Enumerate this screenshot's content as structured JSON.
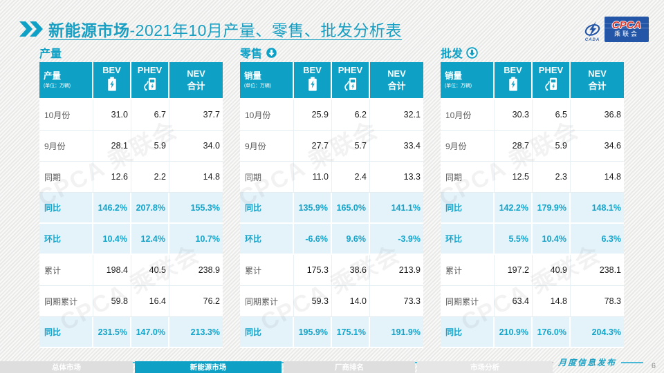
{
  "header": {
    "title_bold": "新能源市场",
    "title_rest": "-2021年10月产量、零售、批发分析表",
    "logo": {
      "swoosh_text": "CADA",
      "box_title": "CPCA",
      "box_subtitle": "乘联会"
    }
  },
  "watermark": "CPCA 乘联会",
  "tables": [
    {
      "section_title": "产量",
      "arrow_icon": "none",
      "corner_label": "产量",
      "corner_unit": "(单位：万辆)",
      "columns": [
        "BEV",
        "PHEV",
        "NEV\n合计"
      ],
      "rows": [
        {
          "label": "10月份",
          "values": [
            "31.0",
            "6.7",
            "37.7"
          ],
          "highlight": false
        },
        {
          "label": "9月份",
          "values": [
            "28.1",
            "5.9",
            "34.0"
          ],
          "highlight": false
        },
        {
          "label": "同期",
          "values": [
            "12.6",
            "2.2",
            "14.8"
          ],
          "highlight": false
        },
        {
          "label": "同比",
          "values": [
            "146.2%",
            "207.8%",
            "155.3%"
          ],
          "highlight": true
        },
        {
          "label": "环比",
          "values": [
            "10.4%",
            "12.4%",
            "10.7%"
          ],
          "highlight": true
        },
        {
          "label": "累计",
          "values": [
            "198.4",
            "40.5",
            "238.9"
          ],
          "highlight": false
        },
        {
          "label": "同期累计",
          "values": [
            "59.8",
            "16.4",
            "76.2"
          ],
          "highlight": false
        },
        {
          "label": "同比",
          "values": [
            "231.5%",
            "147.0%",
            "213.3%"
          ],
          "highlight": true
        }
      ]
    },
    {
      "section_title": "零售",
      "arrow_icon": "solid",
      "corner_label": "销量",
      "corner_unit": "(单位：万辆)",
      "columns": [
        "BEV",
        "PHEV",
        "NEV\n合计"
      ],
      "rows": [
        {
          "label": "10月份",
          "values": [
            "25.9",
            "6.2",
            "32.1"
          ],
          "highlight": false
        },
        {
          "label": "9月份",
          "values": [
            "27.7",
            "5.7",
            "33.4"
          ],
          "highlight": false
        },
        {
          "label": "同期",
          "values": [
            "11.0",
            "2.4",
            "13.3"
          ],
          "highlight": false
        },
        {
          "label": "同比",
          "values": [
            "135.9%",
            "165.0%",
            "141.1%"
          ],
          "highlight": true
        },
        {
          "label": "环比",
          "values": [
            "-6.6%",
            "9.6%",
            "-3.9%"
          ],
          "highlight": true
        },
        {
          "label": "累计",
          "values": [
            "175.3",
            "38.6",
            "213.9"
          ],
          "highlight": false
        },
        {
          "label": "同期累计",
          "values": [
            "59.3",
            "14.0",
            "73.3"
          ],
          "highlight": false
        },
        {
          "label": "同比",
          "values": [
            "195.9%",
            "175.1%",
            "191.9%"
          ],
          "highlight": true
        }
      ]
    },
    {
      "section_title": "批发",
      "arrow_icon": "outline",
      "corner_label": "销量",
      "corner_unit": "(单位：万辆)",
      "columns": [
        "BEV",
        "PHEV",
        "NEV\n合计"
      ],
      "rows": [
        {
          "label": "10月份",
          "values": [
            "30.3",
            "6.5",
            "36.8"
          ],
          "highlight": false
        },
        {
          "label": "9月份",
          "values": [
            "28.7",
            "5.9",
            "34.6"
          ],
          "highlight": false
        },
        {
          "label": "同期",
          "values": [
            "12.5",
            "2.3",
            "14.8"
          ],
          "highlight": false
        },
        {
          "label": "同比",
          "values": [
            "142.2%",
            "179.9%",
            "148.1%"
          ],
          "highlight": true
        },
        {
          "label": "环比",
          "values": [
            "5.5%",
            "10.4%",
            "6.3%"
          ],
          "highlight": true
        },
        {
          "label": "累计",
          "values": [
            "197.2",
            "40.9",
            "238.1"
          ],
          "highlight": false
        },
        {
          "label": "同期累计",
          "values": [
            "63.4",
            "14.8",
            "78.3"
          ],
          "highlight": false
        },
        {
          "label": "同比",
          "values": [
            "210.9%",
            "176.0%",
            "204.3%"
          ],
          "highlight": true
        }
      ]
    }
  ],
  "footer": {
    "tabs": [
      {
        "label": "总体市场",
        "active": false
      },
      {
        "label": "新能源市场",
        "active": true
      },
      {
        "label": "厂商排名",
        "active": false
      },
      {
        "label": "市场分析",
        "active": false
      }
    ],
    "publish_label": "月度信息发布",
    "page_number": "6"
  },
  "colors": {
    "teal": "#0FA0C5",
    "title_teal": "#189FC2",
    "highlight_row_bg": "#E4F2F9",
    "highlight_text": "#14A4CA",
    "logo_blue": "#2456A8",
    "cpca_red": "#DA3B30",
    "tab_inactive_bg": "#DEDEDE",
    "page_bg": "#F1F1F0"
  }
}
